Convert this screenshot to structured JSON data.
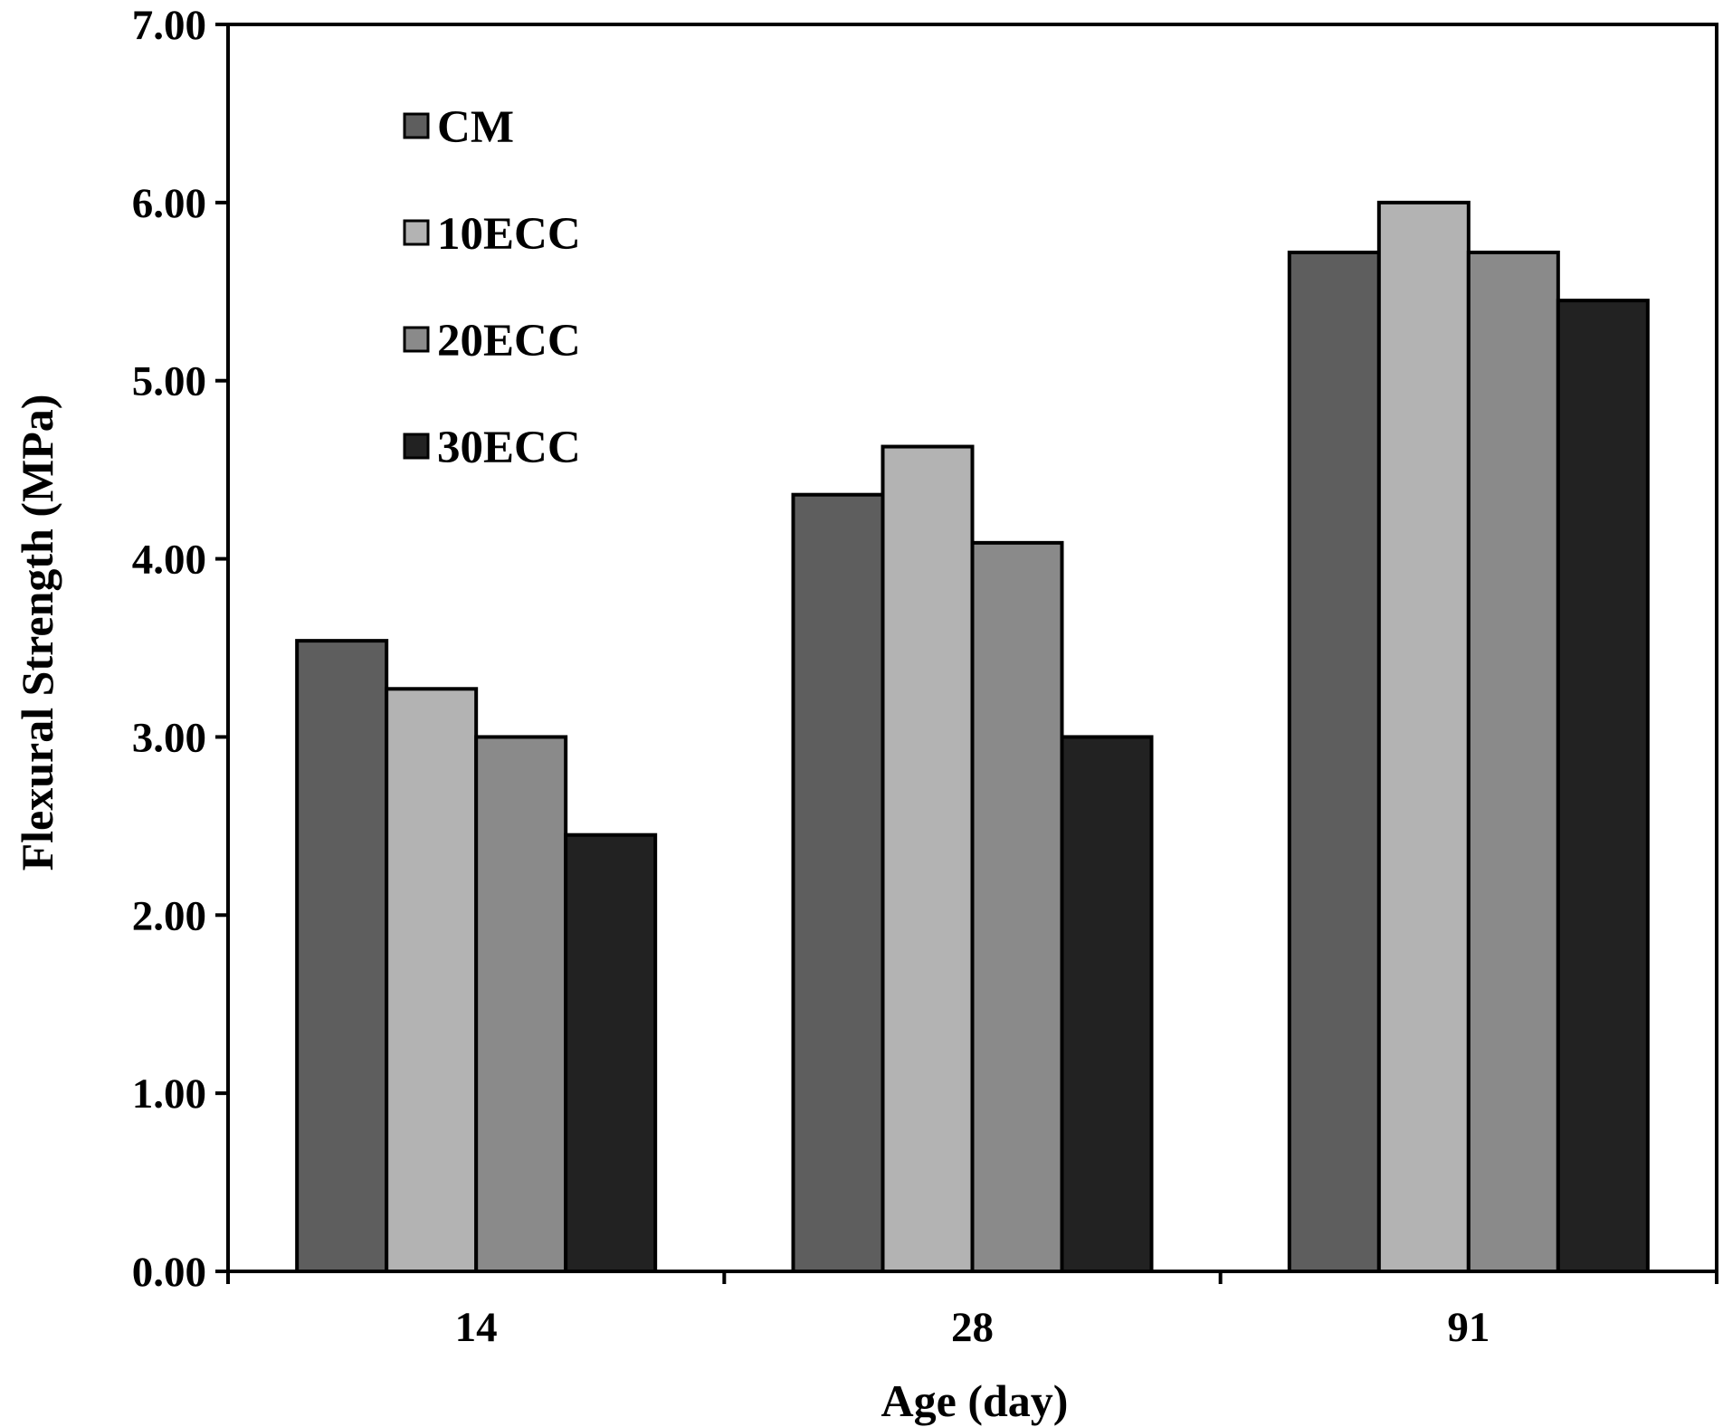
{
  "chart_data": {
    "type": "bar",
    "title": "",
    "xlabel": "Age (day)",
    "ylabel": "Flexural Strength (MPa)",
    "categories": [
      "14",
      "28",
      "91"
    ],
    "ylim": [
      0,
      7
    ],
    "yticks": [
      0,
      1,
      2,
      3,
      4,
      5,
      6,
      7
    ],
    "ytick_labels": [
      "0.00",
      "1.00",
      "2.00",
      "3.00",
      "4.00",
      "5.00",
      "6.00",
      "7.00"
    ],
    "grid": false,
    "legend_position": "top-left",
    "series": [
      {
        "name": "CM",
        "color": "#5e5e5e",
        "values": [
          3.54,
          4.36,
          5.72
        ]
      },
      {
        "name": "10ECC",
        "color": "#b3b3b3",
        "values": [
          3.27,
          4.63,
          6.0
        ]
      },
      {
        "name": "20ECC",
        "color": "#8a8a8a",
        "values": [
          3.0,
          4.09,
          5.72
        ]
      },
      {
        "name": "30ECC",
        "color": "#222222",
        "values": [
          2.45,
          3.0,
          5.45
        ]
      }
    ]
  }
}
